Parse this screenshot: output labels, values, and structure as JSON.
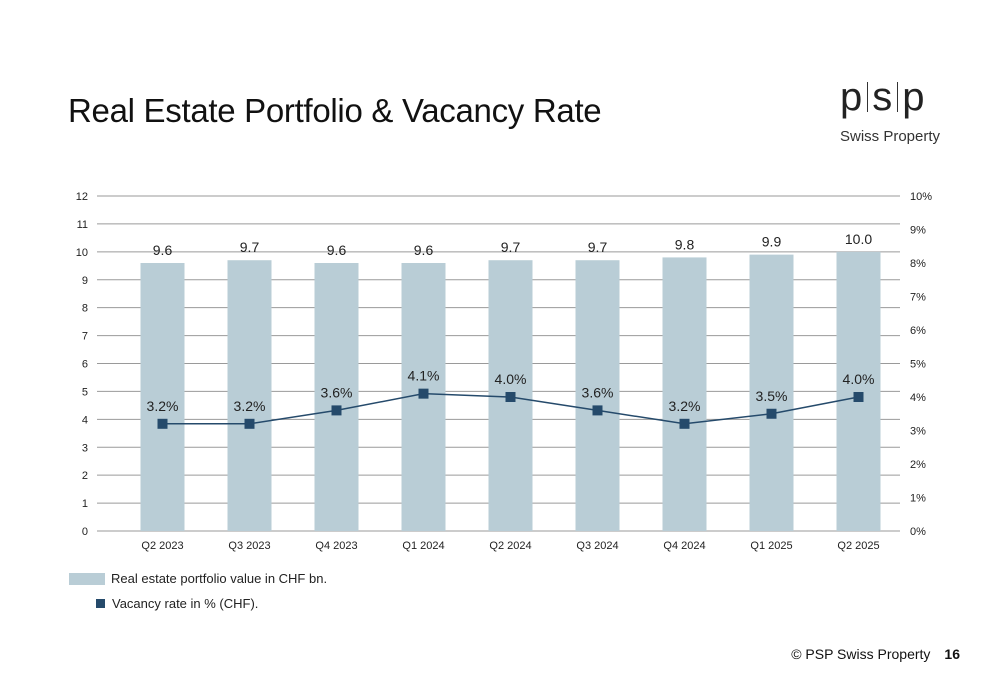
{
  "header": {
    "title": "Real Estate Portfolio & Vacancy Rate",
    "logo_letters": [
      "p",
      "s",
      "p"
    ],
    "logo_subtitle": "Swiss Property"
  },
  "legend": {
    "bar_label": "Real estate portfolio value in CHF bn.",
    "line_label": "Vacancy rate in % (CHF)."
  },
  "footer": {
    "copyright": "© PSP Swiss Property",
    "page_number": "16"
  },
  "colors": {
    "bar": "#b9cdd6",
    "line": "#254a6b",
    "grid": "#9a9a9a"
  },
  "chart_data": {
    "type": "bar",
    "categories": [
      "Q2 2023",
      "Q3 2023",
      "Q4 2023",
      "Q1 2024",
      "Q2 2024",
      "Q3 2024",
      "Q4 2024",
      "Q1 2025",
      "Q2 2025"
    ],
    "series": [
      {
        "name": "Real estate portfolio value in CHF bn.",
        "type": "bar",
        "axis": "left",
        "values": [
          9.6,
          9.7,
          9.6,
          9.6,
          9.7,
          9.7,
          9.8,
          9.9,
          10.0
        ],
        "labels": [
          "9.6",
          "9.7",
          "9.6",
          "9.6",
          "9.7",
          "9.7",
          "9.8",
          "9.9",
          "10.0"
        ]
      },
      {
        "name": "Vacancy rate in % (CHF).",
        "type": "line",
        "axis": "right",
        "values": [
          3.2,
          3.2,
          3.6,
          4.1,
          4.0,
          3.6,
          3.2,
          3.5,
          4.0
        ],
        "labels": [
          "3.2%",
          "3.2%",
          "3.6%",
          "4.1%",
          "4.0%",
          "3.6%",
          "3.2%",
          "3.5%",
          "4.0%"
        ]
      }
    ],
    "y_left": {
      "min": 0,
      "max": 12,
      "ticks": [
        "0",
        "1",
        "2",
        "3",
        "4",
        "5",
        "6",
        "7",
        "8",
        "9",
        "10",
        "11",
        "12"
      ]
    },
    "y_right": {
      "min": 0,
      "max": 10,
      "ticks": [
        "0%",
        "1%",
        "2%",
        "3%",
        "4%",
        "5%",
        "6%",
        "7%",
        "8%",
        "9%",
        "10%"
      ]
    },
    "grid": true,
    "legend_position": "bottom-left"
  }
}
